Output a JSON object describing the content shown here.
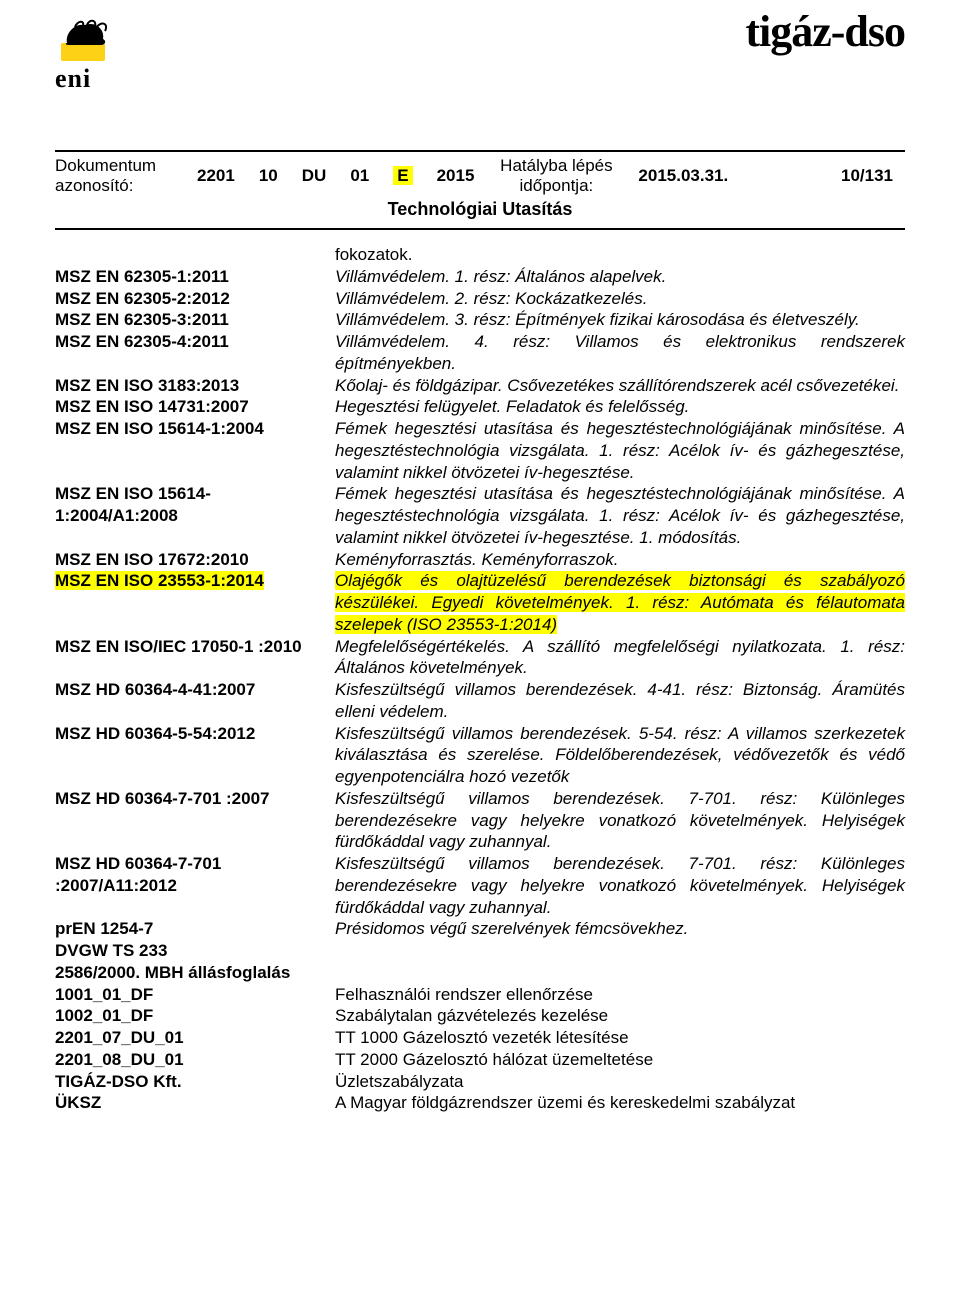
{
  "colors": {
    "highlight": "#ffff00",
    "text": "#000000",
    "rule": "#000000",
    "bg": "#ffffff"
  },
  "logos": {
    "left_text": "eni",
    "right_text": "tigáz-dso"
  },
  "docbar": {
    "left_label_line1": "Dokumentum",
    "left_label_line2": "azonosító:",
    "c1": "2201",
    "c2": "10",
    "c3": "DU",
    "c4": "01",
    "c5": "E",
    "c6": "2015",
    "right_label_line1": "Hatályba lépés",
    "right_label_line2": "időpontja:",
    "date": "2015.03.31.",
    "page": "10/131",
    "subtitle": "Technológiai Utasítás"
  },
  "rows": [
    {
      "k": "",
      "v": "fokozatok.",
      "roman": true
    },
    {
      "k": "MSZ EN 62305-1:2011",
      "v": "Villámvédelem. 1. rész: Általános alapelvek."
    },
    {
      "k": "MSZ EN 62305-2:2012",
      "v": "Villámvédelem. 2. rész: Kockázatkezelés."
    },
    {
      "k": "MSZ EN 62305-3:2011",
      "v": "Villámvédelem. 3. rész: Építmények fizikai károsodása és életveszély."
    },
    {
      "k": "MSZ EN 62305-4:2011",
      "v": "Villámvédelem. 4. rész: Villamos és elektronikus rendszerek építményekben."
    },
    {
      "k": "MSZ EN ISO 3183:2013",
      "v": "Kőolaj- és földgázipar. Csővezetékes szállítórendszerek acél csővezetékei."
    },
    {
      "k": "MSZ EN ISO 14731:2007",
      "v": "Hegesztési felügyelet. Feladatok és felelősség."
    },
    {
      "k": "MSZ EN ISO 15614-1:2004",
      "v": "Fémek hegesztési utasítása és hegesztéstechnológiájának minősítése. A hegesztéstechnológia vizsgálata. 1. rész: Acélok ív- és gázhegesztése, valamint nikkel ötvözetei ív-hegesztése."
    },
    {
      "k": "MSZ EN ISO 15614-1:2004/A1:2008",
      "v": "Fémek hegesztési utasítása és hegesztéstechnológiájának minősítése. A hegesztéstechnológia vizsgálata. 1. rész: Acélok ív- és gázhegesztése, valamint nikkel ötvözetei ív-hegesztése. 1. módosítás."
    },
    {
      "k": "MSZ EN ISO 17672:2010",
      "v": "Keményforrasztás. Keményforraszok."
    },
    {
      "k": "MSZ EN ISO 23553-1:2014",
      "v": "Olajégők és olajtüzelésű berendezések biztonsági és szabályozó készülékei. Egyedi követelmények. 1. rész: Autómata és félautomata szelepek (ISO 23553-1:2014)",
      "hl": true
    },
    {
      "k": "MSZ EN ISO/IEC 17050-1 :2010",
      "v": "Megfelelőségértékelés. A szállító megfelelőségi nyilatkozata. 1. rész: Általános követelmények."
    },
    {
      "k": "MSZ HD 60364-4-41:2007",
      "v": "Kisfeszültségű villamos berendezések. 4-41. rész: Biztonság. Áramütés elleni védelem."
    },
    {
      "k": "MSZ HD 60364-5-54:2012",
      "v": "Kisfeszültségű villamos berendezések. 5-54. rész: A villamos szerkezetek kiválasztása és szerelése. Földelőberendezések, védővezetők és védő egyenpotenciálra hozó vezetők"
    },
    {
      "k": "MSZ HD 60364-7-701 :2007",
      "v": "Kisfeszültségű villamos berendezések. 7-701. rész: Különleges berendezésekre vagy helyekre vonatkozó követelmények. Helyiségek fürdőkáddal vagy zuhannyal."
    },
    {
      "k": "MSZ HD 60364-7-701 :2007/A11:2012",
      "v": "Kisfeszültségű villamos berendezések. 7-701. rész: Különleges berendezésekre vagy helyekre vonatkozó követelmények. Helyiségek fürdőkáddal vagy zuhannyal."
    },
    {
      "k": "prEN 1254-7",
      "v": "Présidomos végű szerelvények fémcsövekhez."
    },
    {
      "k": "DVGW TS 233",
      "v": ""
    },
    {
      "k": "2586/2000. MBH állásfoglalás",
      "v": ""
    },
    {
      "k": "1001_01_DF",
      "v": "Felhasználói rendszer ellenőrzése",
      "roman": true
    },
    {
      "k": "1002_01_DF",
      "v": "Szabálytalan gázvételezés kezelése",
      "roman": true
    },
    {
      "k": "2201_07_DU_01",
      "v": "TT 1000 Gázelosztó vezeték létesítése",
      "roman": true
    },
    {
      "k": "2201_08_DU_01",
      "v": "TT 2000 Gázelosztó hálózat üzemeltetése",
      "roman": true
    },
    {
      "k": "TIGÁZ-DSO Kft.",
      "v": "Üzletszabályzata",
      "roman": true
    },
    {
      "k": "ÜKSZ",
      "v": "A Magyar földgázrendszer üzemi és kereskedelmi szabályzat",
      "roman": true
    }
  ]
}
